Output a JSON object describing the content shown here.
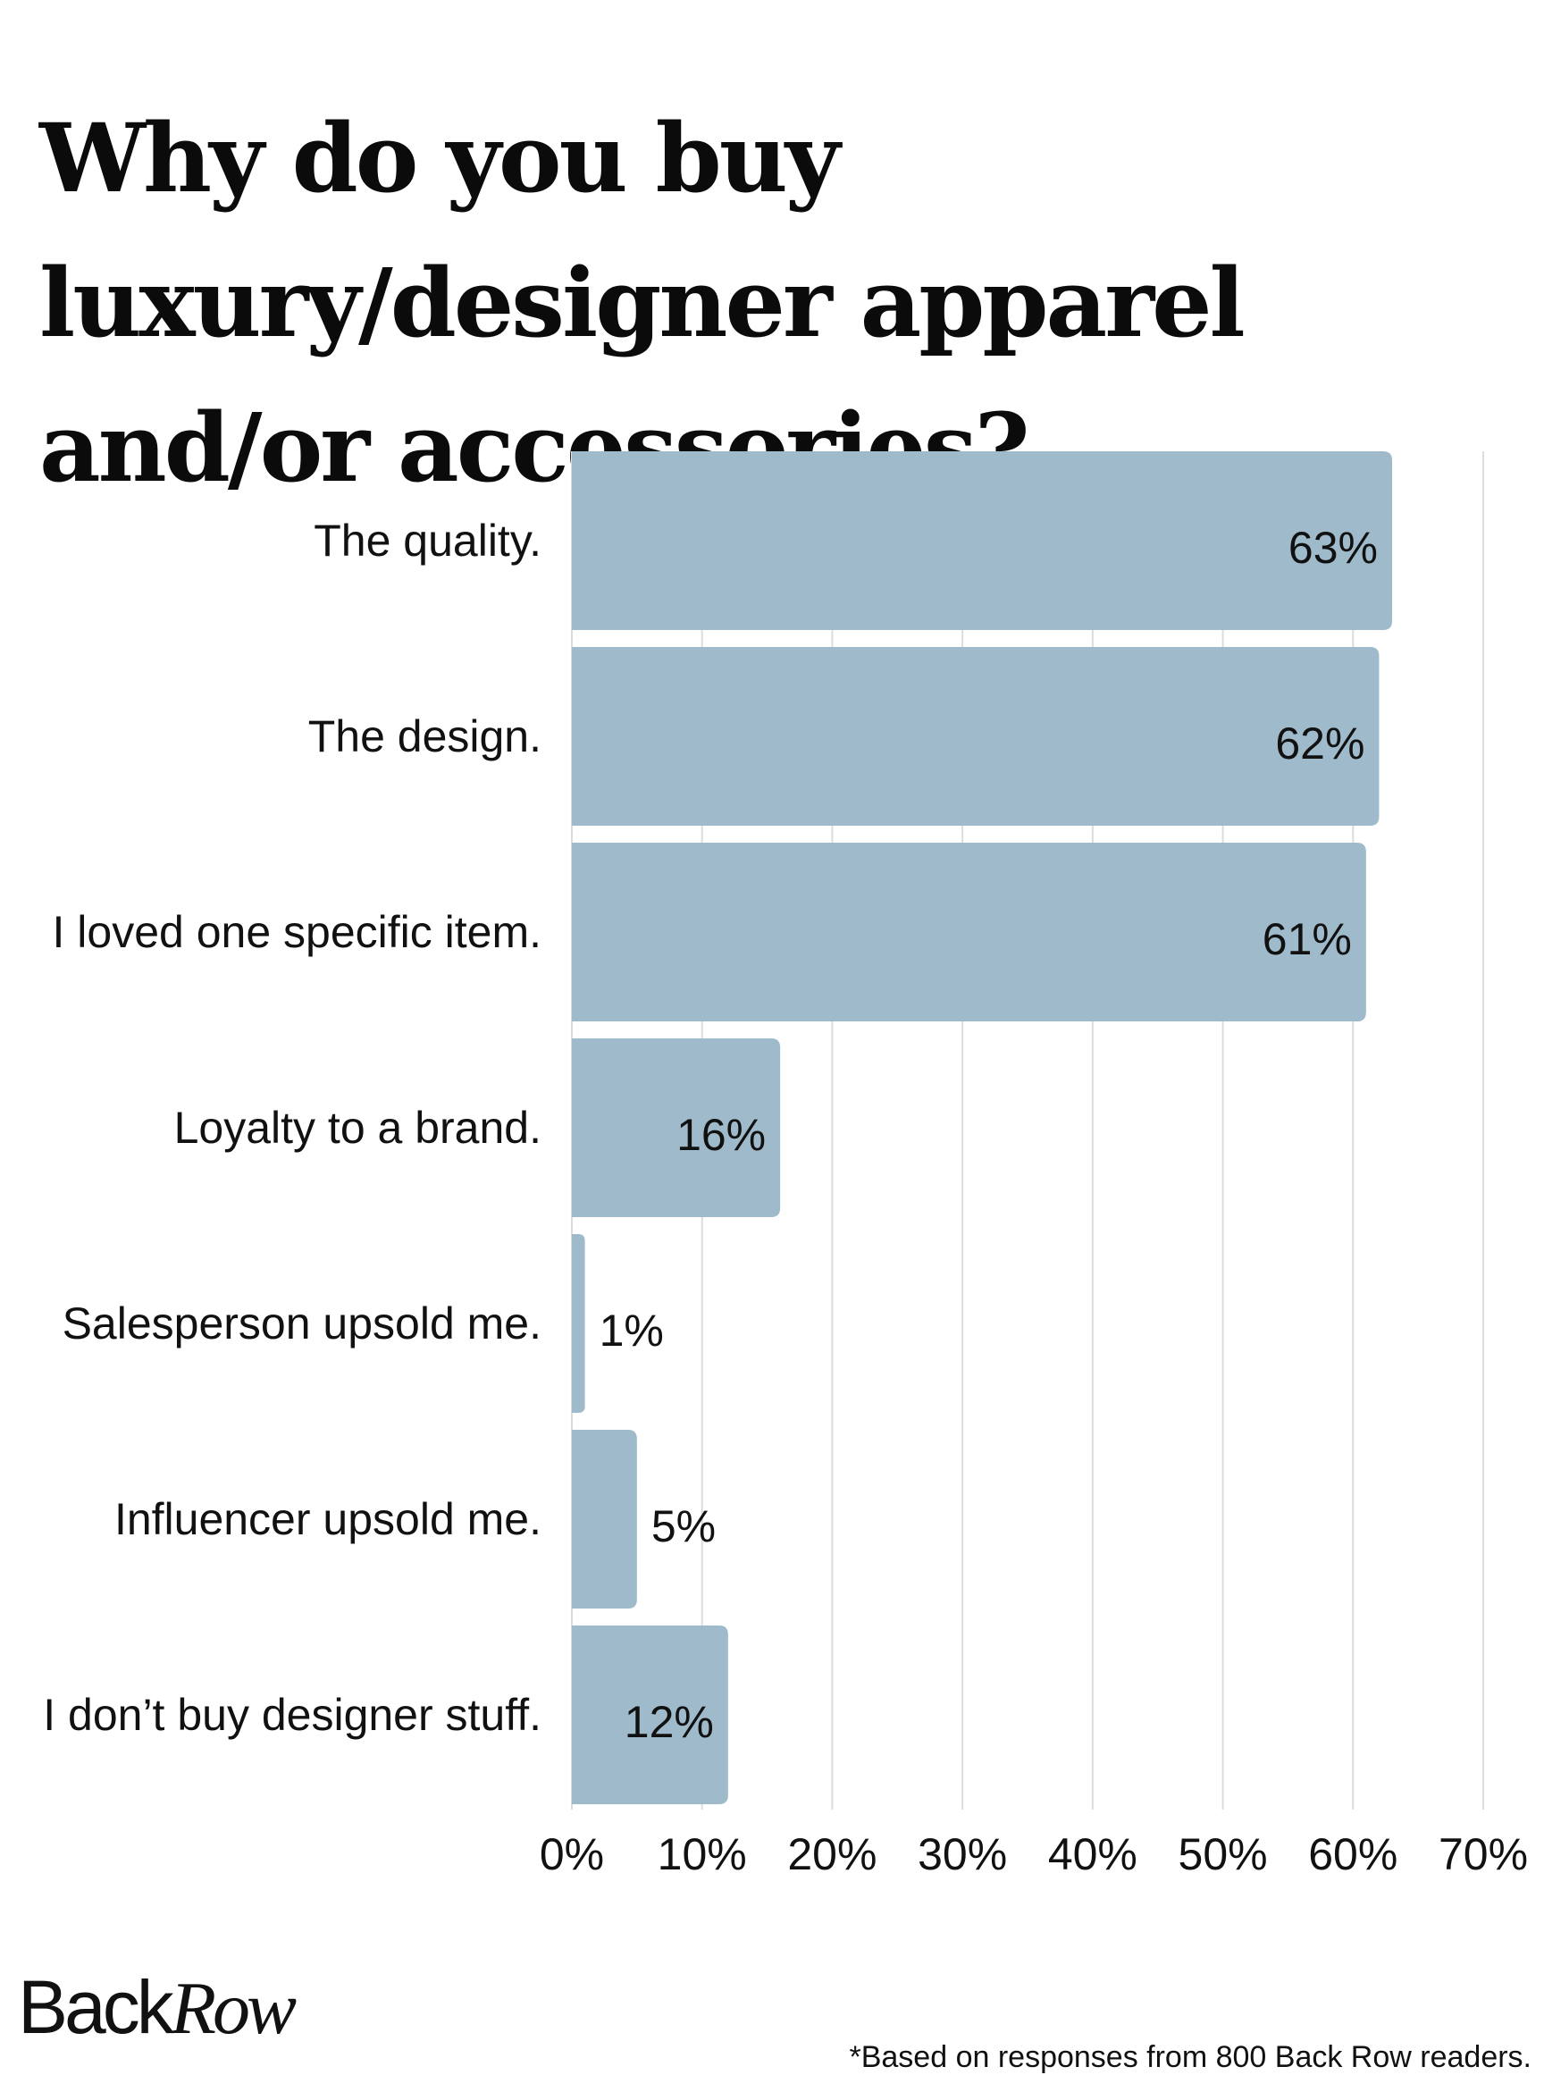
{
  "colors": {
    "bar": "#9fbbcb",
    "grid": "#dcdcdc",
    "text": "#111111"
  },
  "brand": {
    "part1": "Back",
    "part2": "Row"
  },
  "footnote": "*Based on responses from  800 Back Row readers.",
  "chart_data": {
    "type": "bar",
    "orientation": "horizontal",
    "title": "Why do you buy luxury/designer apparel and/or accessories?",
    "xlabel": "",
    "ylabel": "",
    "xlim": [
      0,
      70
    ],
    "grid": true,
    "x_ticks": [
      0,
      10,
      20,
      30,
      40,
      50,
      60,
      70
    ],
    "x_tick_labels": [
      "0%",
      "10%",
      "20%",
      "30%",
      "40%",
      "50%",
      "60%",
      "70%"
    ],
    "categories": [
      "The quality.",
      "The design.",
      "I loved one specific item.",
      "Loyalty to a brand.",
      "Salesperson upsold me.",
      "Influencer upsold me.",
      "I don’t buy designer stuff."
    ],
    "values": [
      63,
      62,
      61,
      16,
      1,
      5,
      12
    ],
    "value_labels": [
      "63%",
      "62%",
      "61%",
      "16%",
      "1%",
      "5%",
      "12%"
    ]
  }
}
